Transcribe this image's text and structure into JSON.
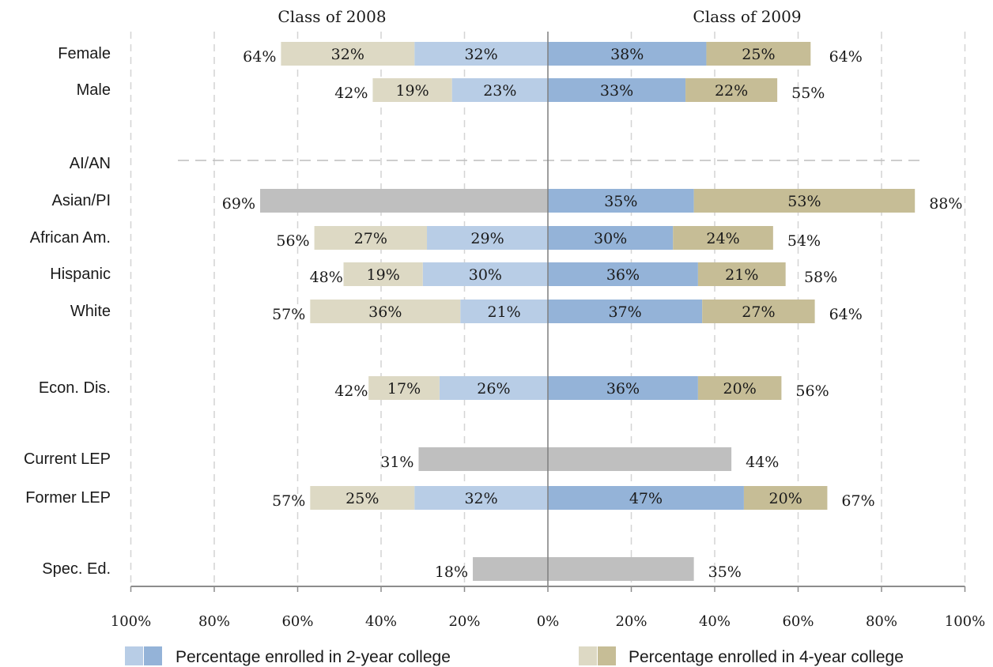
{
  "chart_data": {
    "type": "bar",
    "orientation": "horizontal-diverging",
    "panel_titles": [
      "Class of 2008",
      "Class of 2009"
    ],
    "x_tick_labels": [
      "100%",
      "80%",
      "60%",
      "40%",
      "20%",
      "0%",
      "20%",
      "40%",
      "60%",
      "80%",
      "100%"
    ],
    "xlim": [
      -100,
      100
    ],
    "grid": true,
    "legend_position": "bottom",
    "legend": [
      {
        "name": "Percentage enrolled in 2-year college",
        "colors": [
          "#b8cde6",
          "#94b3d8"
        ]
      },
      {
        "name": "Percentage enrolled in 4-year college",
        "colors": [
          "#ddd9c4",
          "#c6bd96"
        ]
      }
    ],
    "colors": {
      "two_year_2008": "#b8cde6",
      "four_year_2008": "#ddd9c4",
      "two_year_2009": "#94b3d8",
      "four_year_2009": "#c6bd96",
      "total_only": "#bfbfbf"
    },
    "rows": [
      {
        "label": "Female",
        "c2008": {
          "two_year": "32%",
          "four_year": "32%",
          "total": "64%"
        },
        "c2009": {
          "two_year": "38%",
          "four_year": "25%",
          "total": "64%"
        }
      },
      {
        "label": "Male",
        "c2008": {
          "two_year": "23%",
          "four_year": "19%",
          "total": "42%"
        },
        "c2009": {
          "two_year": "33%",
          "four_year": "22%",
          "total": "55%"
        }
      },
      {
        "label": "AI/AN"
      },
      {
        "label": "Asian/PI",
        "c2008": {
          "total": "69%"
        },
        "c2009": {
          "two_year": "35%",
          "four_year": "53%",
          "total": "88%"
        }
      },
      {
        "label": "African Am.",
        "c2008": {
          "two_year": "29%",
          "four_year": "27%",
          "total": "56%"
        },
        "c2009": {
          "two_year": "30%",
          "four_year": "24%",
          "total": "54%"
        }
      },
      {
        "label": "Hispanic",
        "c2008": {
          "two_year": "30%",
          "four_year": "19%",
          "total": "48%"
        },
        "c2009": {
          "two_year": "36%",
          "four_year": "21%",
          "total": "58%"
        }
      },
      {
        "label": "White",
        "c2008": {
          "two_year": "21%",
          "four_year": "36%",
          "total": "57%"
        },
        "c2009": {
          "two_year": "37%",
          "four_year": "27%",
          "total": "64%"
        }
      },
      {
        "label": "Econ. Dis.",
        "c2008": {
          "two_year": "26%",
          "four_year": "17%",
          "total": "42%"
        },
        "c2009": {
          "two_year": "36%",
          "four_year": "20%",
          "total": "56%"
        }
      },
      {
        "label": "Current LEP",
        "c2008": {
          "total": "31%"
        },
        "c2009": {
          "total": "44%"
        }
      },
      {
        "label": "Former LEP",
        "c2008": {
          "two_year": "32%",
          "four_year": "25%",
          "total": "57%"
        },
        "c2009": {
          "two_year": "47%",
          "four_year": "20%",
          "total": "67%"
        }
      },
      {
        "label": "Spec. Ed.",
        "c2008": {
          "total": "18%"
        },
        "c2009": {
          "total": "35%"
        }
      }
    ]
  }
}
